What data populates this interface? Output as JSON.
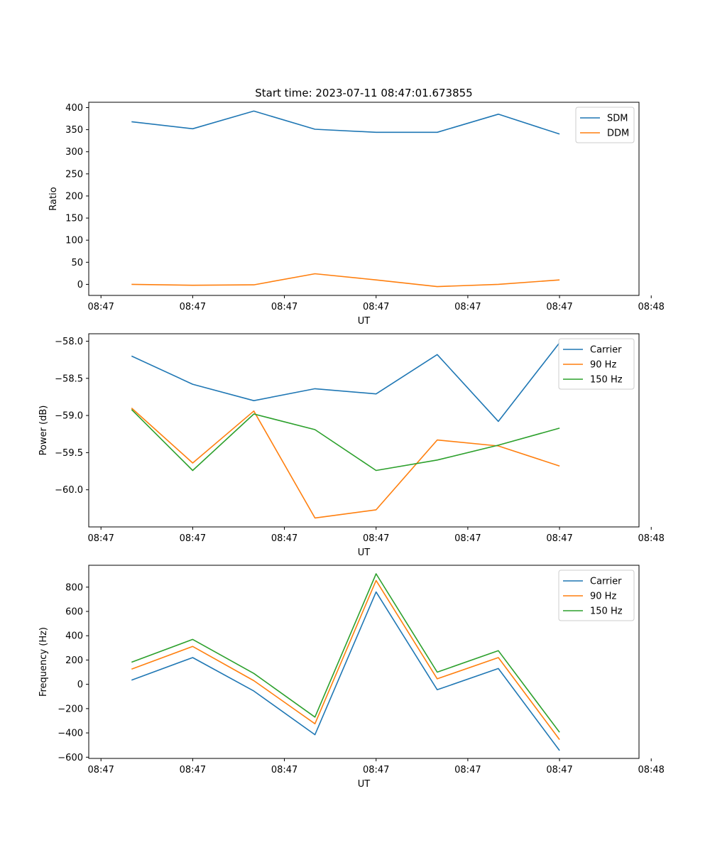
{
  "figure_title": "Start time: 2023-07-11 08:47:01.673855",
  "colors": {
    "blue": "#1f77b4",
    "orange": "#ff7f0e",
    "green": "#2ca02c"
  },
  "chart_data": [
    {
      "type": "line",
      "title": "Start time: 2023-07-11 08:47:01.673855",
      "xlabel": "UT",
      "ylabel": "Ratio",
      "legend_position": "top-right",
      "x": [
        1,
        2,
        3,
        4,
        5,
        6,
        7,
        8
      ],
      "xlim": [
        0.3,
        9.3
      ],
      "x_ticks": [
        0.5,
        2,
        3.5,
        5,
        6.5,
        8,
        9.5
      ],
      "x_ticklabels": [
        "08:47",
        "08:47",
        "08:47",
        "08:47",
        "08:47",
        "08:47",
        "08:48"
      ],
      "ylim": [
        -25,
        412
      ],
      "y_ticks": [
        0,
        50,
        100,
        150,
        200,
        250,
        300,
        350,
        400
      ],
      "y_ticklabels": [
        "0",
        "50",
        "100",
        "150",
        "200",
        "250",
        "300",
        "350",
        "400"
      ],
      "series": [
        {
          "name": "SDM",
          "color": "#1f77b4",
          "values": [
            368,
            352,
            392,
            351,
            344,
            344,
            385,
            340
          ]
        },
        {
          "name": "DDM",
          "color": "#ff7f0e",
          "values": [
            0,
            -2,
            -1,
            24,
            10,
            -5,
            0,
            10
          ]
        }
      ]
    },
    {
      "type": "line",
      "title": "",
      "xlabel": "UT",
      "ylabel": "Power (dB)",
      "legend_position": "top-right",
      "x": [
        1,
        2,
        3,
        4,
        5,
        6,
        7,
        8
      ],
      "xlim": [
        0.3,
        9.3
      ],
      "x_ticks": [
        0.5,
        2,
        3.5,
        5,
        6.5,
        8,
        9.5
      ],
      "x_ticklabels": [
        "08:47",
        "08:47",
        "08:47",
        "08:47",
        "08:47",
        "08:47",
        "08:48"
      ],
      "ylim": [
        -60.5,
        -57.9
      ],
      "y_ticks": [
        -60.0,
        -59.5,
        -59.0,
        -58.5,
        -58.0
      ],
      "y_ticklabels": [
        "−60.0",
        "−59.5",
        "−59.0",
        "−58.5",
        "−58.0"
      ],
      "series": [
        {
          "name": "Carrier",
          "color": "#1f77b4",
          "values": [
            -58.2,
            -58.58,
            -58.8,
            -58.64,
            -58.71,
            -58.18,
            -59.08,
            -58.02
          ]
        },
        {
          "name": "90 Hz",
          "color": "#ff7f0e",
          "values": [
            -58.9,
            -59.64,
            -58.94,
            -60.38,
            -60.27,
            -59.33,
            -59.41,
            -59.68
          ]
        },
        {
          "name": "150 Hz",
          "color": "#2ca02c",
          "values": [
            -58.92,
            -59.74,
            -58.98,
            -59.19,
            -59.74,
            -59.6,
            -59.4,
            -59.17
          ]
        }
      ]
    },
    {
      "type": "line",
      "title": "",
      "xlabel": "UT",
      "ylabel": "Frequency (Hz)",
      "legend_position": "top-right",
      "x": [
        1,
        2,
        3,
        4,
        5,
        6,
        7,
        8
      ],
      "xlim": [
        0.3,
        9.3
      ],
      "x_ticks": [
        0.5,
        2,
        3.5,
        5,
        6.5,
        8,
        9.5
      ],
      "x_ticklabels": [
        "08:47",
        "08:47",
        "08:47",
        "08:47",
        "08:47",
        "08:47",
        "08:48"
      ],
      "ylim": [
        -610,
        980
      ],
      "y_ticks": [
        -600,
        -400,
        -200,
        0,
        200,
        400,
        600,
        800
      ],
      "y_ticklabels": [
        "−600",
        "−400",
        "−200",
        "0",
        "200",
        "400",
        "600",
        "800"
      ],
      "series": [
        {
          "name": "Carrier",
          "color": "#1f77b4",
          "values": [
            35,
            220,
            -55,
            -415,
            760,
            -45,
            130,
            -545
          ]
        },
        {
          "name": "90 Hz",
          "color": "#ff7f0e",
          "values": [
            125,
            312,
            30,
            -325,
            855,
            45,
            220,
            -455
          ]
        },
        {
          "name": "150 Hz",
          "color": "#2ca02c",
          "values": [
            182,
            370,
            90,
            -270,
            910,
            100,
            277,
            -395
          ]
        }
      ]
    }
  ]
}
